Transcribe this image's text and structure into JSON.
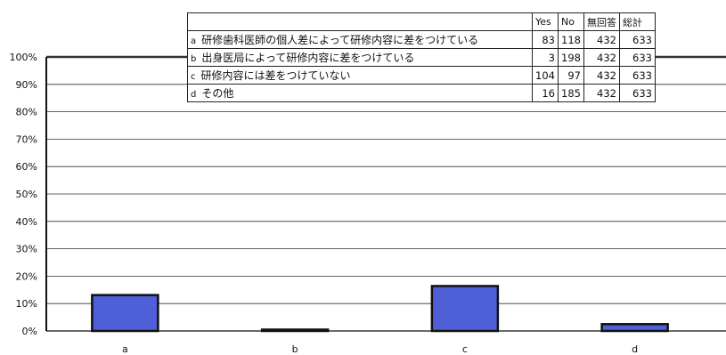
{
  "chart_data": {
    "type": "bar",
    "categories": [
      "a",
      "b",
      "c",
      "d"
    ],
    "values": [
      13.1,
      0.5,
      16.4,
      2.5
    ],
    "ylim": [
      0,
      100
    ],
    "yticks": [
      "0%",
      "10%",
      "20%",
      "30%",
      "40%",
      "50%",
      "60%",
      "70%",
      "80%",
      "90%",
      "100%"
    ],
    "grid": true,
    "bar_color": "#4f5fd8",
    "bar_edge_color": "#111111"
  },
  "table": {
    "headers": [
      "",
      "Yes",
      "No",
      "無回答",
      "総計"
    ],
    "rows": [
      {
        "code": "a",
        "label": "研修歯科医師の個人差によって研修内容に差をつけている",
        "yes": "83",
        "no": "118",
        "na": "432",
        "total": "633"
      },
      {
        "code": "b",
        "label": "出身医局によって研修内容に差をつけている",
        "yes": "3",
        "no": "198",
        "na": "432",
        "total": "633"
      },
      {
        "code": "c",
        "label": "研修内容には差をつけていない",
        "yes": "104",
        "no": "97",
        "na": "432",
        "total": "633"
      },
      {
        "code": "d",
        "label": "その他",
        "yes": "16",
        "no": "185",
        "na": "432",
        "total": "633"
      }
    ]
  }
}
